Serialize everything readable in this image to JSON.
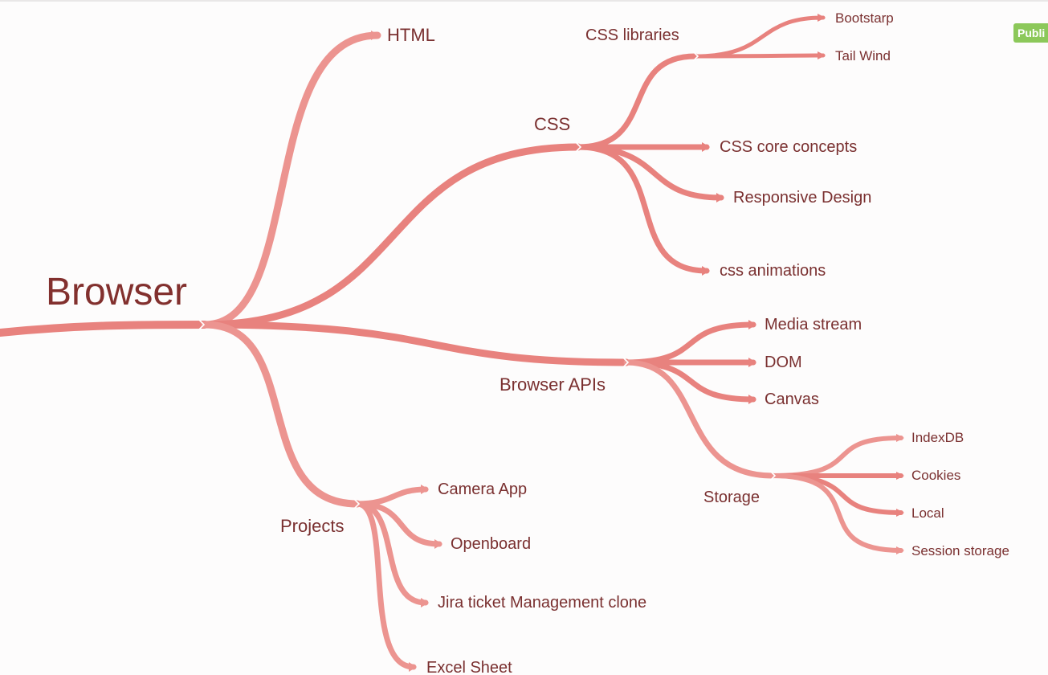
{
  "badge": "Publi",
  "colors": {
    "branch": "#e8827e",
    "branch_light": "#ec9490",
    "text": "#7a3030",
    "root_text": "#82302e",
    "badge": "#8cc85a",
    "background": "#fdfcfc"
  },
  "mindmap": {
    "root": "Browser",
    "html": "HTML",
    "css": "CSS",
    "css_libraries": "CSS libraries",
    "bootstrap": "Bootstarp",
    "tailwind": "Tail Wind",
    "css_core": "CSS core concepts",
    "responsive": "Responsive Design",
    "css_animations": "css animations",
    "browser_apis": "Browser APIs",
    "media_stream": "Media stream",
    "dom": "DOM",
    "canvas": "Canvas",
    "storage": "Storage",
    "indexdb": "IndexDB",
    "cookies": "Cookies",
    "local": "Local",
    "session_storage": "Session storage",
    "projects": "Projects",
    "camera_app": "Camera App",
    "openboard": "Openboard",
    "jira": "Jira ticket Management clone",
    "excel": "Excel Sheet"
  }
}
